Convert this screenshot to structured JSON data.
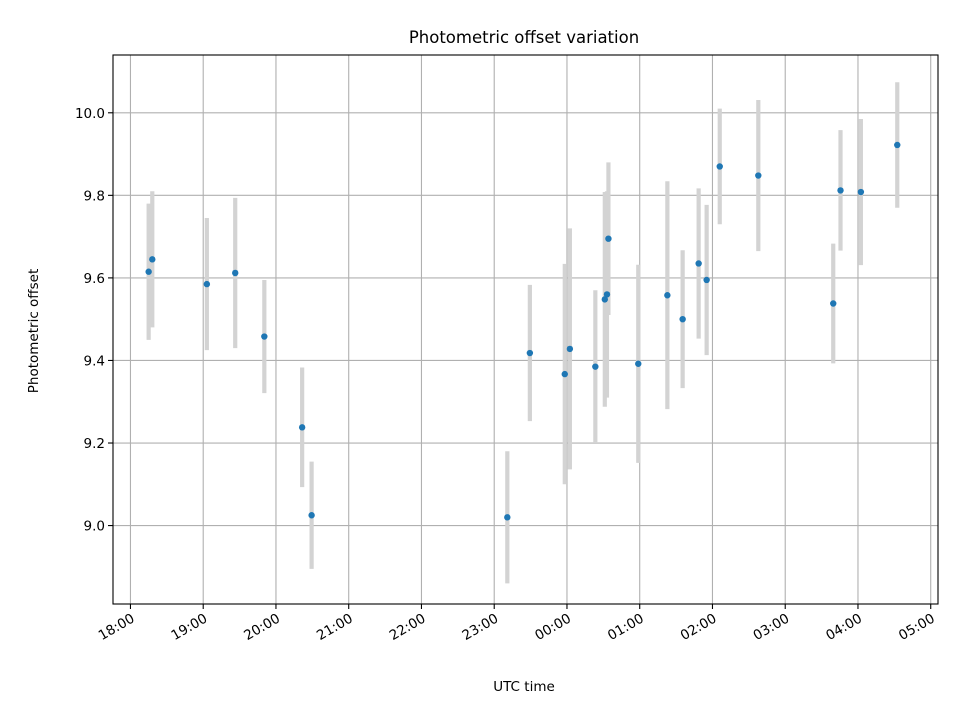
{
  "chart_data": {
    "type": "scatter",
    "title": "Photometric offset variation",
    "xlabel": "UTC time",
    "ylabel": "Photometric offset",
    "x_unit": "hours after 18:00 UTC",
    "xlim": [
      -0.24,
      11.1
    ],
    "ylim": [
      8.81,
      10.14
    ],
    "grid": true,
    "colors": {
      "point": "#1f77b4",
      "errorbar": "#d3d3d3"
    },
    "x_ticks": [
      {
        "value": 0,
        "label": "18:00"
      },
      {
        "value": 1,
        "label": "19:00"
      },
      {
        "value": 2,
        "label": "20:00"
      },
      {
        "value": 3,
        "label": "21:00"
      },
      {
        "value": 4,
        "label": "22:00"
      },
      {
        "value": 5,
        "label": "23:00"
      },
      {
        "value": 6,
        "label": "00:00"
      },
      {
        "value": 7,
        "label": "01:00"
      },
      {
        "value": 8,
        "label": "02:00"
      },
      {
        "value": 9,
        "label": "03:00"
      },
      {
        "value": 10,
        "label": "04:00"
      },
      {
        "value": 11,
        "label": "05:00"
      }
    ],
    "y_ticks": [
      {
        "value": 9.0,
        "label": "9.0"
      },
      {
        "value": 9.2,
        "label": "9.2"
      },
      {
        "value": 9.4,
        "label": "9.4"
      },
      {
        "value": 9.6,
        "label": "9.6"
      },
      {
        "value": 9.8,
        "label": "9.8"
      },
      {
        "value": 10.0,
        "label": "10.0"
      }
    ],
    "points": [
      {
        "x": 0.25,
        "y": 9.615,
        "err": 0.165
      },
      {
        "x": 0.3,
        "y": 9.645,
        "err": 0.165
      },
      {
        "x": 1.05,
        "y": 9.585,
        "err": 0.16
      },
      {
        "x": 1.44,
        "y": 9.612,
        "err": 0.182
      },
      {
        "x": 1.84,
        "y": 9.458,
        "err": 0.137
      },
      {
        "x": 2.36,
        "y": 9.238,
        "err": 0.145
      },
      {
        "x": 2.49,
        "y": 9.025,
        "err": 0.13
      },
      {
        "x": 5.18,
        "y": 9.02,
        "err": 0.16
      },
      {
        "x": 5.49,
        "y": 9.418,
        "err": 0.165
      },
      {
        "x": 5.97,
        "y": 9.367,
        "err": 0.267
      },
      {
        "x": 6.04,
        "y": 9.428,
        "err": 0.292
      },
      {
        "x": 6.39,
        "y": 9.385,
        "err": 0.185
      },
      {
        "x": 6.52,
        "y": 9.548,
        "err": 0.26
      },
      {
        "x": 6.55,
        "y": 9.56,
        "err": 0.25
      },
      {
        "x": 6.57,
        "y": 9.695,
        "err": 0.185
      },
      {
        "x": 6.98,
        "y": 9.392,
        "err": 0.24
      },
      {
        "x": 7.38,
        "y": 9.558,
        "err": 0.276
      },
      {
        "x": 7.59,
        "y": 9.5,
        "err": 0.167
      },
      {
        "x": 7.81,
        "y": 9.635,
        "err": 0.182
      },
      {
        "x": 7.92,
        "y": 9.595,
        "err": 0.182
      },
      {
        "x": 8.1,
        "y": 9.87,
        "err": 0.14
      },
      {
        "x": 8.63,
        "y": 9.848,
        "err": 0.183
      },
      {
        "x": 9.66,
        "y": 9.538,
        "err": 0.145
      },
      {
        "x": 9.76,
        "y": 9.812,
        "err": 0.146
      },
      {
        "x": 10.04,
        "y": 9.808,
        "err": 0.177
      },
      {
        "x": 10.54,
        "y": 9.922,
        "err": 0.152
      }
    ]
  }
}
